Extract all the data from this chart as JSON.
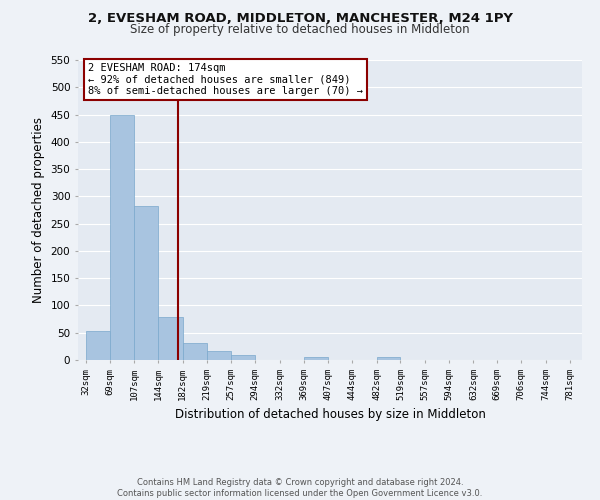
{
  "title_line1": "2, EVESHAM ROAD, MIDDLETON, MANCHESTER, M24 1PY",
  "title_line2": "Size of property relative to detached houses in Middleton",
  "xlabel": "Distribution of detached houses by size in Middleton",
  "ylabel": "Number of detached properties",
  "bar_left_edges": [
    32,
    69,
    107,
    144,
    182,
    219,
    257,
    294,
    332,
    369,
    407,
    444,
    482,
    519,
    557,
    594,
    632,
    669,
    706,
    744
  ],
  "bar_widths": [
    37,
    38,
    37,
    38,
    37,
    38,
    37,
    38,
    37,
    38,
    37,
    38,
    37,
    38,
    37,
    38,
    37,
    37,
    38,
    37
  ],
  "bar_heights": [
    53,
    450,
    283,
    79,
    31,
    17,
    9,
    0,
    0,
    5,
    0,
    0,
    5,
    0,
    0,
    0,
    0,
    0,
    0,
    0
  ],
  "bar_color": "#a8c4e0",
  "bar_edge_color": "#7aa8cc",
  "tick_labels": [
    "32sqm",
    "69sqm",
    "107sqm",
    "144sqm",
    "182sqm",
    "219sqm",
    "257sqm",
    "294sqm",
    "332sqm",
    "369sqm",
    "407sqm",
    "444sqm",
    "482sqm",
    "519sqm",
    "557sqm",
    "594sqm",
    "632sqm",
    "669sqm",
    "706sqm",
    "744sqm",
    "781sqm"
  ],
  "tick_positions": [
    32,
    69,
    107,
    144,
    182,
    219,
    257,
    294,
    332,
    369,
    407,
    444,
    482,
    519,
    557,
    594,
    632,
    669,
    706,
    744,
    781
  ],
  "ylim": [
    0,
    550
  ],
  "xlim": [
    20,
    800
  ],
  "property_line_x": 174,
  "property_line_color": "#8b0000",
  "annotation_title": "2 EVESHAM ROAD: 174sqm",
  "annotation_line1": "← 92% of detached houses are smaller (849)",
  "annotation_line2": "8% of semi-detached houses are larger (70) →",
  "annotation_box_color": "#8b0000",
  "footer_line1": "Contains HM Land Registry data © Crown copyright and database right 2024.",
  "footer_line2": "Contains public sector information licensed under the Open Government Licence v3.0.",
  "background_color": "#eef2f7",
  "plot_bg_color": "#e4eaf2",
  "grid_color": "#ffffff",
  "yticks": [
    0,
    50,
    100,
    150,
    200,
    250,
    300,
    350,
    400,
    450,
    500,
    550
  ]
}
